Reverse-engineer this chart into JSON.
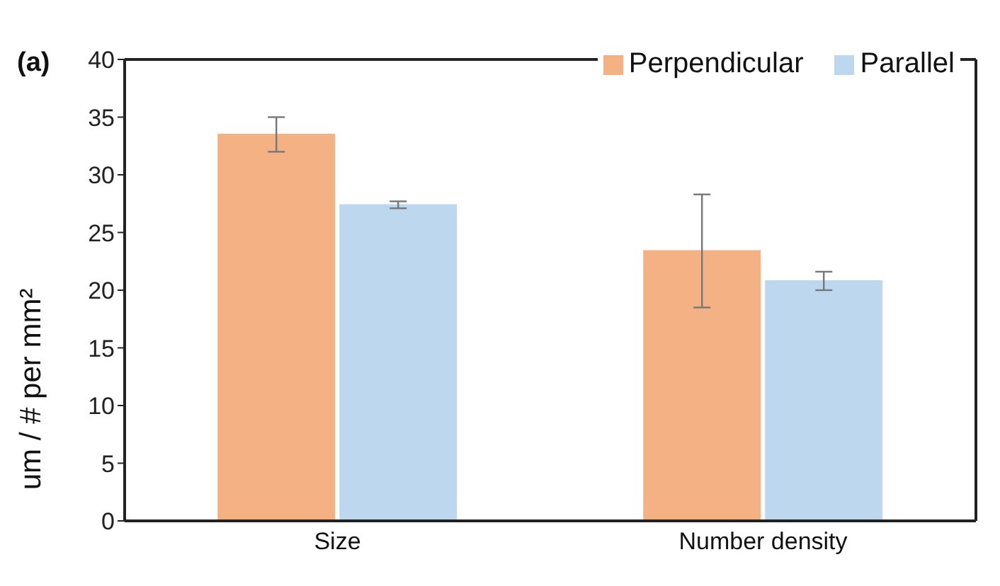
{
  "chart_data": {
    "type": "bar",
    "ylabel": "um / # per mm²",
    "annotations": [
      "(a)"
    ],
    "categories": [
      "Size",
      "Number density"
    ],
    "series": [
      {
        "name": "Perpendicular",
        "color": "#f4b183",
        "values": [
          33.5,
          23.4
        ],
        "errors": [
          1.5,
          4.9
        ]
      },
      {
        "name": "Parallel",
        "color": "#bdd7ee",
        "values": [
          27.4,
          20.8
        ],
        "errors": [
          0.3,
          0.8
        ]
      }
    ],
    "ylim": [
      0,
      40
    ],
    "yticks": [
      0,
      5,
      10,
      15,
      20,
      25,
      30,
      35,
      40
    ],
    "grid": false,
    "legend": "top right"
  }
}
